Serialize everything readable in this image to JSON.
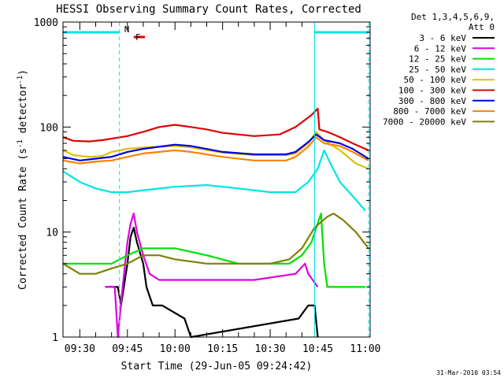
{
  "chart_data": {
    "type": "line",
    "title": "HESSI Observing Summary Count Rates, Corrected",
    "xlabel": "Start Time (29-Jun-05 09:24:42)",
    "ylabel": "Corrected Count Rate (s",
    "ylabel_sup1": "-1",
    "ylabel_mid": " detector",
    "ylabel_sup2": "-1",
    "ylabel_end": ")",
    "ylog": true,
    "ylim": [
      1,
      1000
    ],
    "xlim": [
      "09:24:42",
      "11:01:30"
    ],
    "x_ticks": [
      "09:30",
      "09:45",
      "10:00",
      "10:15",
      "10:30",
      "10:45",
      "11:00"
    ],
    "y_ticks": [
      "1",
      "10",
      "100",
      "1000"
    ],
    "legend_header": [
      "Det 1,3,4,5,6,9,",
      "Att 0"
    ],
    "legend_position": "right",
    "timestamp": "31-Mar-2010 03:54",
    "flags": [
      {
        "label": "N",
        "color": "#00e5e5",
        "intervals": [
          [
            "09:24:42",
            "09:42:30"
          ],
          [
            "10:44:00",
            "11:01:00"
          ]
        ]
      },
      {
        "label": "F",
        "color": "#e00000",
        "intervals": [
          [
            "09:47:00",
            "09:50:30"
          ]
        ]
      }
    ],
    "boundaries": [
      {
        "time": "09:24:42",
        "style": "solid"
      },
      {
        "time": "09:42:30",
        "style": "dashed"
      },
      {
        "time": "10:44:00",
        "style": "solid"
      },
      {
        "time": "11:01:00",
        "style": "dashed"
      }
    ],
    "series": [
      {
        "name": "3 - 6 keV",
        "color": "#000000",
        "points": [
          [
            "09:38:00",
            3
          ],
          [
            "09:42:00",
            3
          ],
          [
            "09:43:00",
            2
          ],
          [
            "09:45:00",
            5
          ],
          [
            "09:46:00",
            9
          ],
          [
            "09:47:00",
            11
          ],
          [
            "09:48:00",
            8
          ],
          [
            "09:50:00",
            5
          ],
          [
            "09:51:00",
            3
          ],
          [
            "09:53:00",
            2
          ],
          [
            "09:56:00",
            2
          ],
          [
            "10:03:00",
            1.5
          ],
          [
            "10:05:00",
            1
          ],
          [
            "10:39:00",
            1.5
          ],
          [
            "10:42:00",
            2
          ],
          [
            "10:44:00",
            2
          ],
          [
            "10:45:00",
            1
          ]
        ]
      },
      {
        "name": "6 - 12 keV",
        "color": "#e000e0",
        "points": [
          [
            "09:38:00",
            3
          ],
          [
            "09:41:00",
            3
          ],
          [
            "09:42:00",
            1
          ],
          [
            "09:43:30",
            3
          ],
          [
            "09:45:00",
            8
          ],
          [
            "09:46:00",
            12
          ],
          [
            "09:47:00",
            15
          ],
          [
            "09:48:00",
            10
          ],
          [
            "09:50:00",
            6
          ],
          [
            "09:52:00",
            4
          ],
          [
            "09:55:00",
            3.5
          ],
          [
            "10:10:00",
            3.5
          ],
          [
            "10:25:00",
            3.5
          ],
          [
            "10:38:00",
            4
          ],
          [
            "10:41:00",
            5
          ],
          [
            "10:42:00",
            4
          ],
          [
            "10:45:00",
            3
          ]
        ]
      },
      {
        "name": "12 - 25 keV",
        "color": "#00e000",
        "points": [
          [
            "09:24:42",
            5
          ],
          [
            "09:35:00",
            5
          ],
          [
            "09:40:00",
            5
          ],
          [
            "09:45:00",
            6
          ],
          [
            "09:50:00",
            7
          ],
          [
            "10:00:00",
            7
          ],
          [
            "10:10:00",
            6
          ],
          [
            "10:20:00",
            5
          ],
          [
            "10:30:00",
            5
          ],
          [
            "10:36:00",
            5
          ],
          [
            "10:40:00",
            6
          ],
          [
            "10:43:00",
            8
          ],
          [
            "10:46:00",
            15
          ],
          [
            "10:47:00",
            5
          ],
          [
            "10:48:00",
            3
          ],
          [
            "11:00:00",
            3
          ]
        ]
      },
      {
        "name": "25 - 50 keV",
        "color": "#00e5e5",
        "points": [
          [
            "09:24:42",
            38
          ],
          [
            "09:30:00",
            30
          ],
          [
            "09:35:00",
            26
          ],
          [
            "09:40:00",
            24
          ],
          [
            "09:45:00",
            24
          ],
          [
            "09:50:00",
            25
          ],
          [
            "10:00:00",
            27
          ],
          [
            "10:10:00",
            28
          ],
          [
            "10:20:00",
            26
          ],
          [
            "10:30:00",
            24
          ],
          [
            "10:38:00",
            24
          ],
          [
            "10:42:00",
            30
          ],
          [
            "10:45:00",
            40
          ],
          [
            "10:47:00",
            60
          ],
          [
            "10:49:00",
            45
          ],
          [
            "10:52:00",
            30
          ],
          [
            "10:56:00",
            22
          ],
          [
            "11:00:00",
            16
          ]
        ]
      },
      {
        "name": "50 - 100 keV",
        "color": "#e0c000",
        "points": [
          [
            "09:24:42",
            60
          ],
          [
            "09:28:00",
            54
          ],
          [
            "09:33:00",
            52
          ],
          [
            "09:37:00",
            53
          ],
          [
            "09:40:00",
            58
          ],
          [
            "09:45:00",
            62
          ],
          [
            "09:50:00",
            64
          ],
          [
            "10:00:00",
            66
          ],
          [
            "10:05:00",
            64
          ],
          [
            "10:15:00",
            57
          ],
          [
            "10:25:00",
            54
          ],
          [
            "10:35:00",
            54
          ],
          [
            "10:38:00",
            56
          ],
          [
            "10:42:00",
            70
          ],
          [
            "10:44:30",
            90
          ],
          [
            "10:47:00",
            75
          ],
          [
            "10:52:00",
            60
          ],
          [
            "10:57:00",
            45
          ],
          [
            "11:01:00",
            40
          ]
        ]
      },
      {
        "name": "100 - 300 keV",
        "color": "#e00000",
        "points": [
          [
            "09:24:42",
            80
          ],
          [
            "09:28:00",
            74
          ],
          [
            "09:33:00",
            73
          ],
          [
            "09:37:00",
            75
          ],
          [
            "09:45:00",
            82
          ],
          [
            "09:50:00",
            90
          ],
          [
            "09:55:00",
            100
          ],
          [
            "10:00:00",
            105
          ],
          [
            "10:05:00",
            100
          ],
          [
            "10:10:00",
            95
          ],
          [
            "10:15:00",
            88
          ],
          [
            "10:25:00",
            82
          ],
          [
            "10:33:00",
            85
          ],
          [
            "10:38:00",
            100
          ],
          [
            "10:43:00",
            130
          ],
          [
            "10:45:00",
            150
          ],
          [
            "10:45:30",
            95
          ],
          [
            "10:48:00",
            90
          ],
          [
            "10:52:00",
            80
          ],
          [
            "10:56:00",
            70
          ],
          [
            "11:01:00",
            60
          ]
        ]
      },
      {
        "name": "300 - 800 keV",
        "color": "#0000e0",
        "points": [
          [
            "09:24:42",
            52
          ],
          [
            "09:30:00",
            48
          ],
          [
            "09:35:00",
            50
          ],
          [
            "09:40:00",
            52
          ],
          [
            "09:45:00",
            58
          ],
          [
            "09:50:00",
            62
          ],
          [
            "10:00:00",
            68
          ],
          [
            "10:05:00",
            66
          ],
          [
            "10:15:00",
            58
          ],
          [
            "10:25:00",
            55
          ],
          [
            "10:35:00",
            55
          ],
          [
            "10:38:00",
            58
          ],
          [
            "10:42:00",
            72
          ],
          [
            "10:44:30",
            85
          ],
          [
            "10:47:00",
            75
          ],
          [
            "10:52:00",
            70
          ],
          [
            "10:56:00",
            62
          ],
          [
            "11:01:00",
            50
          ]
        ]
      },
      {
        "name": "800 - 7000 keV",
        "color": "#ff8000",
        "points": [
          [
            "09:24:42",
            48
          ],
          [
            "09:30:00",
            45
          ],
          [
            "09:35:00",
            47
          ],
          [
            "09:40:00",
            48
          ],
          [
            "09:45:00",
            52
          ],
          [
            "09:50:00",
            56
          ],
          [
            "10:00:00",
            60
          ],
          [
            "10:05:00",
            58
          ],
          [
            "10:15:00",
            52
          ],
          [
            "10:25:00",
            48
          ],
          [
            "10:35:00",
            48
          ],
          [
            "10:38:00",
            52
          ],
          [
            "10:42:00",
            65
          ],
          [
            "10:44:30",
            80
          ],
          [
            "10:47:00",
            70
          ],
          [
            "10:52:00",
            66
          ],
          [
            "10:56:00",
            58
          ],
          [
            "11:01:00",
            48
          ]
        ]
      },
      {
        "name": "7000 - 20000 keV",
        "color": "#808000",
        "points": [
          [
            "09:24:42",
            5
          ],
          [
            "09:30:00",
            4
          ],
          [
            "09:35:00",
            4
          ],
          [
            "09:40:00",
            4.5
          ],
          [
            "09:45:00",
            5
          ],
          [
            "09:50:00",
            6
          ],
          [
            "09:55:00",
            6
          ],
          [
            "10:00:00",
            5.5
          ],
          [
            "10:10:00",
            5
          ],
          [
            "10:20:00",
            5
          ],
          [
            "10:30:00",
            5
          ],
          [
            "10:36:00",
            5.5
          ],
          [
            "10:40:00",
            7
          ],
          [
            "10:44:00",
            11
          ],
          [
            "10:48:00",
            14
          ],
          [
            "10:50:00",
            15
          ],
          [
            "10:53:00",
            13
          ],
          [
            "10:57:00",
            10
          ],
          [
            "11:01:00",
            7
          ]
        ]
      }
    ]
  }
}
